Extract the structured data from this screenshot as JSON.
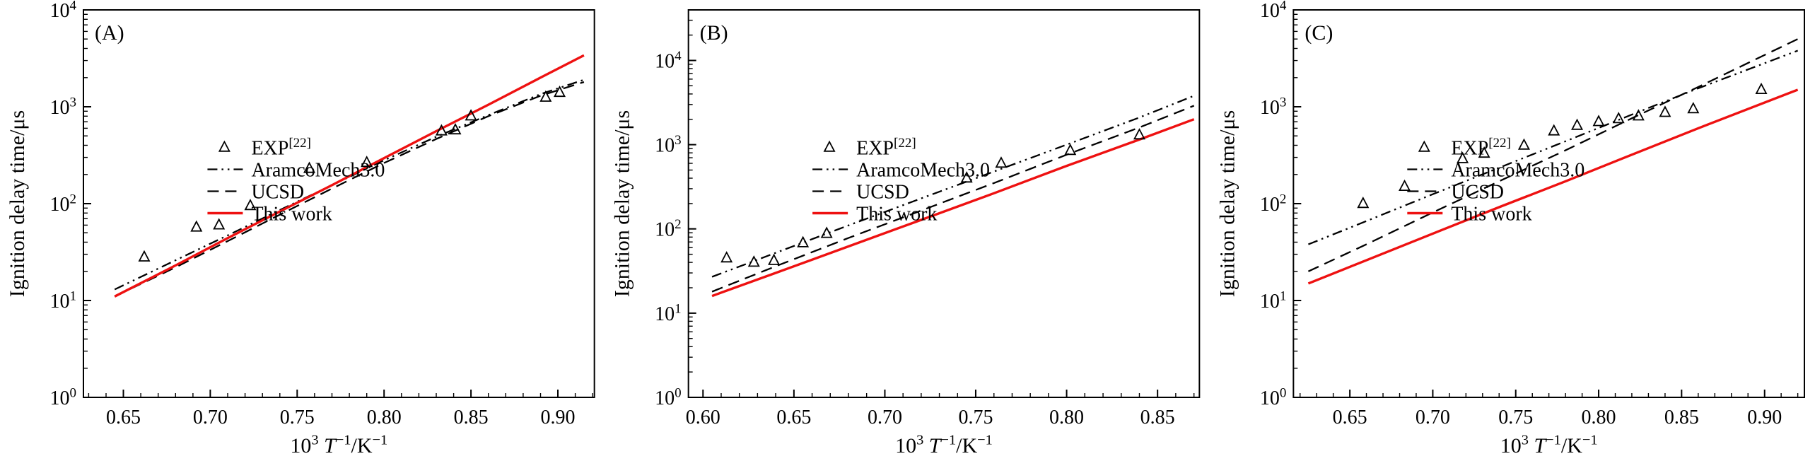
{
  "figure": {
    "background": "#ffffff",
    "axis_color": "#000000",
    "ylabel": "Ignition delay time/μs",
    "xlabel_text": "10³ T⁻¹/K⁻¹",
    "xlabel_parts": [
      {
        "t": "10"
      },
      {
        "t": "3",
        "sup": true
      },
      {
        "t": " "
      },
      {
        "t": "T",
        "italic": true
      },
      {
        "t": "−1",
        "sup": true
      },
      {
        "t": "/K"
      },
      {
        "t": "−1",
        "sup": true
      }
    ],
    "legend": [
      {
        "key": "exp",
        "type": "marker",
        "label_text": "EXP[22]",
        "label_parts": [
          {
            "t": "EXP"
          },
          {
            "t": "[22]",
            "sup": true
          }
        ]
      },
      {
        "key": "aramco",
        "type": "line",
        "label_text": "AramcoMech3.0",
        "label_parts": [
          {
            "t": "AramcoMech3.0"
          }
        ]
      },
      {
        "key": "ucsd",
        "type": "line",
        "label_text": "UCSD",
        "label_parts": [
          {
            "t": "UCSD"
          }
        ]
      },
      {
        "key": "this-work",
        "type": "line",
        "label_text": "This work",
        "label_parts": [
          {
            "t": "This work"
          }
        ]
      }
    ]
  },
  "chart_data": [
    {
      "type": "scatter",
      "id": "A",
      "panel_label": "(A)",
      "xlabel": "10³ T⁻¹/K⁻¹",
      "ylabel": "Ignition delay time/μs",
      "ylog": true,
      "xlim": [
        0.627,
        0.921
      ],
      "xticks": [
        0.65,
        0.7,
        0.75,
        0.8,
        0.85,
        0.9
      ],
      "ylim_exp": [
        0,
        4
      ],
      "yticks_exp": [
        0,
        1,
        2,
        3,
        4
      ],
      "legend_pos": [
        0.24,
        0.355
      ],
      "series": [
        {
          "key": "exp",
          "name": "EXP[22]",
          "style": "triangle-marker",
          "color": "#000000",
          "points": [
            [
              0.662,
              28
            ],
            [
              0.692,
              57
            ],
            [
              0.705,
              60
            ],
            [
              0.723,
              95
            ],
            [
              0.757,
              230
            ],
            [
              0.79,
              265
            ],
            [
              0.833,
              560
            ],
            [
              0.841,
              575
            ],
            [
              0.85,
              800
            ],
            [
              0.893,
              1250
            ],
            [
              0.901,
              1400
            ]
          ]
        },
        {
          "key": "aramco",
          "name": "AramcoMech3.0",
          "style": "dash-dot-dot",
          "color": "#000000",
          "points": [
            [
              0.645,
              13
            ],
            [
              0.68,
              26
            ],
            [
              0.71,
              47
            ],
            [
              0.74,
              86
            ],
            [
              0.77,
              155
            ],
            [
              0.8,
              280
            ],
            [
              0.83,
              490
            ],
            [
              0.86,
              820
            ],
            [
              0.89,
              1350
            ],
            [
              0.915,
              1900
            ]
          ]
        },
        {
          "key": "ucsd",
          "name": "UCSD",
          "style": "dashed",
          "color": "#000000",
          "points": [
            [
              0.645,
              11
            ],
            [
              0.68,
              22
            ],
            [
              0.71,
              41
            ],
            [
              0.74,
              77
            ],
            [
              0.77,
              143
            ],
            [
              0.8,
              263
            ],
            [
              0.83,
              465
            ],
            [
              0.86,
              800
            ],
            [
              0.89,
              1300
            ],
            [
              0.915,
              1800
            ]
          ]
        },
        {
          "key": "this-work",
          "name": "This work",
          "style": "solid",
          "color": "#ee1111",
          "points": [
            [
              0.645,
              11
            ],
            [
              0.68,
              23
            ],
            [
              0.71,
              44
            ],
            [
              0.74,
              83
            ],
            [
              0.77,
              155
            ],
            [
              0.8,
              295
            ],
            [
              0.83,
              560
            ],
            [
              0.86,
              1050
            ],
            [
              0.89,
              2000
            ],
            [
              0.915,
              3400
            ]
          ]
        }
      ]
    },
    {
      "type": "scatter",
      "id": "B",
      "panel_label": "(B)",
      "xlabel": "10³ T⁻¹/K⁻¹",
      "ylabel": "Ignition delay time/μs",
      "ylog": true,
      "xlim": [
        0.592,
        0.873
      ],
      "xticks": [
        0.6,
        0.65,
        0.7,
        0.75,
        0.8,
        0.85
      ],
      "ylim_exp": [
        0,
        4.6
      ],
      "yticks_exp": [
        0,
        1,
        2,
        3,
        4
      ],
      "legend_pos": [
        0.24,
        0.355
      ],
      "series": [
        {
          "key": "exp",
          "name": "EXP[22]",
          "style": "triangle-marker",
          "color": "#000000",
          "points": [
            [
              0.613,
              45
            ],
            [
              0.628,
              40
            ],
            [
              0.639,
              42
            ],
            [
              0.655,
              68
            ],
            [
              0.668,
              88
            ],
            [
              0.745,
              400
            ],
            [
              0.764,
              600
            ],
            [
              0.802,
              850
            ],
            [
              0.84,
              1300
            ]
          ]
        },
        {
          "key": "aramco",
          "name": "AramcoMech3.0",
          "style": "dash-dot-dot",
          "color": "#000000",
          "points": [
            [
              0.605,
              27
            ],
            [
              0.64,
              52
            ],
            [
              0.68,
              110
            ],
            [
              0.72,
              230
            ],
            [
              0.76,
              480
            ],
            [
              0.8,
              1000
            ],
            [
              0.84,
              2100
            ],
            [
              0.87,
              3800
            ]
          ]
        },
        {
          "key": "ucsd",
          "name": "UCSD",
          "style": "dashed",
          "color": "#000000",
          "points": [
            [
              0.605,
              18
            ],
            [
              0.64,
              36
            ],
            [
              0.68,
              78
            ],
            [
              0.72,
              165
            ],
            [
              0.76,
              350
            ],
            [
              0.8,
              760
            ],
            [
              0.84,
              1600
            ],
            [
              0.87,
              2900
            ]
          ]
        },
        {
          "key": "this-work",
          "name": "This work",
          "style": "solid",
          "color": "#ee1111",
          "points": [
            [
              0.605,
              16
            ],
            [
              0.64,
              30
            ],
            [
              0.68,
              62
            ],
            [
              0.72,
              128
            ],
            [
              0.76,
              265
            ],
            [
              0.8,
              560
            ],
            [
              0.84,
              1150
            ],
            [
              0.87,
              2000
            ]
          ]
        }
      ]
    },
    {
      "type": "scatter",
      "id": "C",
      "panel_label": "(C)",
      "xlabel": "10³ T⁻¹/K⁻¹",
      "ylabel": "Ignition delay time/μs",
      "ylog": true,
      "xlim": [
        0.616,
        0.924
      ],
      "xticks": [
        0.65,
        0.7,
        0.75,
        0.8,
        0.85,
        0.9
      ],
      "ylim_exp": [
        0,
        4
      ],
      "yticks_exp": [
        0,
        1,
        2,
        3,
        4
      ],
      "legend_pos": [
        0.22,
        0.355
      ],
      "series": [
        {
          "key": "exp",
          "name": "EXP[22]",
          "style": "triangle-marker",
          "color": "#000000",
          "points": [
            [
              0.658,
              100
            ],
            [
              0.683,
              150
            ],
            [
              0.718,
              290
            ],
            [
              0.731,
              330
            ],
            [
              0.755,
              400
            ],
            [
              0.773,
              560
            ],
            [
              0.787,
              640
            ],
            [
              0.8,
              700
            ],
            [
              0.812,
              750
            ],
            [
              0.824,
              800
            ],
            [
              0.84,
              870
            ],
            [
              0.857,
              950
            ],
            [
              0.898,
              1500
            ]
          ]
        },
        {
          "key": "aramco",
          "name": "AramcoMech3.0",
          "style": "dash-dot-dot",
          "color": "#000000",
          "points": [
            [
              0.625,
              38
            ],
            [
              0.66,
              66
            ],
            [
              0.7,
              125
            ],
            [
              0.74,
              235
            ],
            [
              0.78,
              440
            ],
            [
              0.82,
              830
            ],
            [
              0.86,
              1550
            ],
            [
              0.92,
              3800
            ]
          ]
        },
        {
          "key": "ucsd",
          "name": "UCSD",
          "style": "dashed",
          "color": "#000000",
          "points": [
            [
              0.625,
              20
            ],
            [
              0.66,
              38
            ],
            [
              0.7,
              81
            ],
            [
              0.74,
              170
            ],
            [
              0.78,
              355
            ],
            [
              0.82,
              760
            ],
            [
              0.86,
              1600
            ],
            [
              0.92,
              5000
            ]
          ]
        },
        {
          "key": "this-work",
          "name": "This work",
          "style": "solid",
          "color": "#ee1111",
          "points": [
            [
              0.625,
              15
            ],
            [
              0.66,
              26
            ],
            [
              0.7,
              49
            ],
            [
              0.74,
              92
            ],
            [
              0.78,
              170
            ],
            [
              0.82,
              320
            ],
            [
              0.86,
              600
            ],
            [
              0.92,
              1500
            ]
          ]
        }
      ]
    }
  ]
}
